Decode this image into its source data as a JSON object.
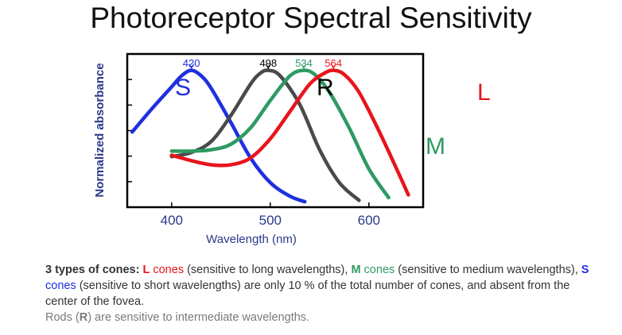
{
  "title": "Photoreceptor Spectral Sensitivity",
  "chart_data": {
    "type": "line",
    "title": "",
    "xlabel": "Wavelength (nm)",
    "ylabel": "Normalized absorbance",
    "xlim": [
      355,
      655
    ],
    "ylim": [
      0,
      1.12
    ],
    "xticks": [
      400,
      500,
      600
    ],
    "grid": false,
    "series": [
      {
        "name": "S",
        "color": "#1f2fe0",
        "peak_label": "420",
        "x": [
          360,
          380,
          400,
          410,
          420,
          430,
          440,
          460,
          480,
          500,
          520,
          535
        ],
        "y": [
          0.55,
          0.72,
          0.88,
          0.96,
          1.0,
          0.96,
          0.87,
          0.62,
          0.36,
          0.18,
          0.08,
          0.04
        ]
      },
      {
        "name": "R",
        "color": "#4a4a4a",
        "peak_label": "498",
        "x": [
          400,
          420,
          440,
          460,
          480,
          490,
          498,
          510,
          530,
          550,
          570,
          590
        ],
        "y": [
          0.37,
          0.4,
          0.48,
          0.67,
          0.9,
          0.98,
          1.0,
          0.96,
          0.75,
          0.42,
          0.18,
          0.05
        ]
      },
      {
        "name": "M",
        "color": "#2e9a62",
        "peak_label": "534",
        "x": [
          400,
          420,
          440,
          460,
          480,
          500,
          520,
          534,
          545,
          560,
          580,
          600,
          620
        ],
        "y": [
          0.41,
          0.41,
          0.42,
          0.46,
          0.58,
          0.78,
          0.96,
          1.0,
          0.97,
          0.84,
          0.58,
          0.28,
          0.07
        ]
      },
      {
        "name": "L",
        "color": "#e8141c",
        "peak_label": "564",
        "x": [
          400,
          420,
          440,
          460,
          480,
          500,
          520,
          540,
          555,
          564,
          575,
          590,
          610,
          630,
          640
        ],
        "y": [
          0.38,
          0.34,
          0.31,
          0.31,
          0.36,
          0.5,
          0.7,
          0.9,
          0.98,
          1.0,
          0.97,
          0.84,
          0.56,
          0.25,
          0.09
        ]
      }
    ]
  },
  "curve_labels": {
    "S": "S",
    "R": "R",
    "M": "M",
    "L": "L"
  },
  "caption": {
    "line1_bold": "3 types of cones: ",
    "L_letter": "L",
    "L_rest": " cones",
    "after_L": " (sensitive to long wavelengths), ",
    "M_letter": "M",
    "M_rest": " cones",
    "after_M": " (sensitive to medium wavelengths), ",
    "S_letter": "S",
    "S_rest": " cones",
    "after_S": " (sensitive to short wavelengths) are only 10 % of the total number of cones, and absent from the center of the fovea.",
    "rods_pre": "Rods (",
    "rods_letter": "R",
    "rods_post": ") are sensitive to intermediate wavelengths."
  },
  "colors": {
    "L": "#e8141c",
    "M": "#2e9a62",
    "S": "#1f2fe0",
    "text": "#333333"
  }
}
